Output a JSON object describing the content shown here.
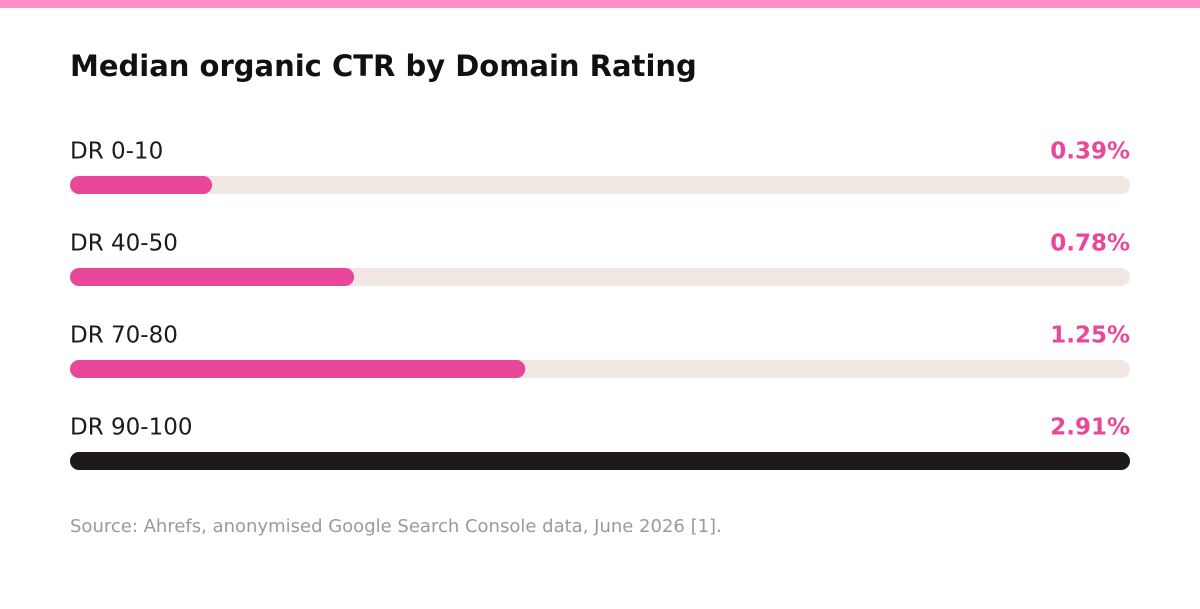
{
  "chart_data": {
    "type": "bar",
    "orientation": "horizontal",
    "title": "Median organic CTR by Domain Rating",
    "categories": [
      "DR 0-10",
      "DR 40-50",
      "DR 70-80",
      "DR 90-100"
    ],
    "values": [
      0.39,
      0.78,
      1.25,
      2.91
    ],
    "value_labels": [
      "0.39%",
      "0.78%",
      "1.25%",
      "2.91%"
    ],
    "colors": [
      "#e8479a",
      "#e8479a",
      "#e8479a",
      "#1e1a1c"
    ],
    "label_color": "#e8479a",
    "track_color": "#f1e8e4",
    "xlim": [
      0,
      2.91
    ],
    "source": "Source: Ahrefs, anonymised Google Search Console data, June 2026 [1]."
  }
}
